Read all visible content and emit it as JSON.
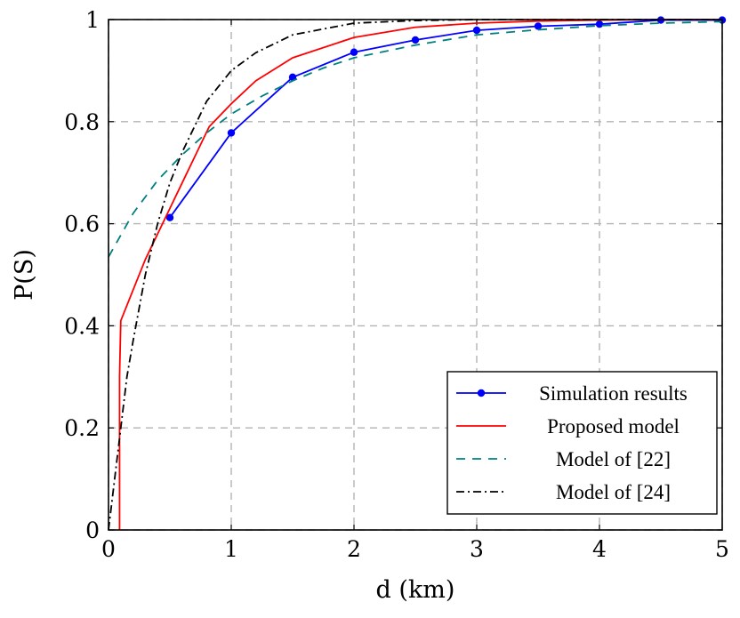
{
  "chart_data": {
    "type": "line",
    "xlabel": "d (km)",
    "ylabel": "P(S)",
    "xlim": [
      0,
      5
    ],
    "ylim": [
      0,
      1
    ],
    "x_ticks": [
      "0",
      "1",
      "2",
      "3",
      "4",
      "5"
    ],
    "y_ticks": [
      "0",
      "0.2",
      "0.4",
      "0.6",
      "0.8",
      "1"
    ],
    "grid": true,
    "legend_position": "bottom-right",
    "series": [
      {
        "name": "Simulation results",
        "color": "#0000ff",
        "style": "solid-markers",
        "x": [
          0.5,
          1.0,
          1.5,
          2.0,
          2.5,
          3.0,
          3.5,
          4.0,
          4.5,
          5.0
        ],
        "y": [
          0.612,
          0.778,
          0.887,
          0.936,
          0.96,
          0.979,
          0.987,
          0.991,
          0.999,
          0.999
        ]
      },
      {
        "name": "Proposed model",
        "color": "#ff0000",
        "style": "solid",
        "x": [
          0.09,
          0.09,
          0.1,
          0.2,
          0.3,
          0.4,
          0.5,
          0.6,
          0.7,
          0.82,
          1.0,
          1.2,
          1.5,
          2.0,
          2.5,
          3.0,
          3.5,
          4.0,
          4.5,
          5.0
        ],
        "y": [
          0.0,
          0.3,
          0.41,
          0.47,
          0.53,
          0.58,
          0.63,
          0.68,
          0.73,
          0.79,
          0.835,
          0.88,
          0.925,
          0.965,
          0.985,
          0.993,
          0.997,
          0.999,
          1.0,
          1.0
        ]
      },
      {
        "name": "Model of [22]",
        "color": "#008080",
        "style": "dashed",
        "x": [
          0.0,
          0.2,
          0.4,
          0.6,
          0.8,
          1.0,
          1.25,
          1.5,
          1.75,
          2.0,
          2.5,
          3.0,
          3.5,
          4.0,
          4.5,
          5.0
        ],
        "y": [
          0.535,
          0.62,
          0.685,
          0.735,
          0.778,
          0.815,
          0.85,
          0.88,
          0.905,
          0.925,
          0.95,
          0.97,
          0.98,
          0.988,
          0.993,
          0.996
        ]
      },
      {
        "name": "Model of [24]",
        "color": "#000000",
        "style": "dashdot",
        "x": [
          0.0,
          0.05,
          0.1,
          0.15,
          0.2,
          0.3,
          0.4,
          0.5,
          0.6,
          0.7,
          0.8,
          1.0,
          1.2,
          1.5,
          2.0,
          2.5,
          3.0,
          3.5,
          4.0,
          5.0
        ],
        "y": [
          0.0,
          0.1,
          0.2,
          0.3,
          0.37,
          0.5,
          0.6,
          0.68,
          0.74,
          0.79,
          0.84,
          0.9,
          0.935,
          0.97,
          0.993,
          0.998,
          1.0,
          1.0,
          1.0,
          1.0
        ]
      }
    ]
  }
}
